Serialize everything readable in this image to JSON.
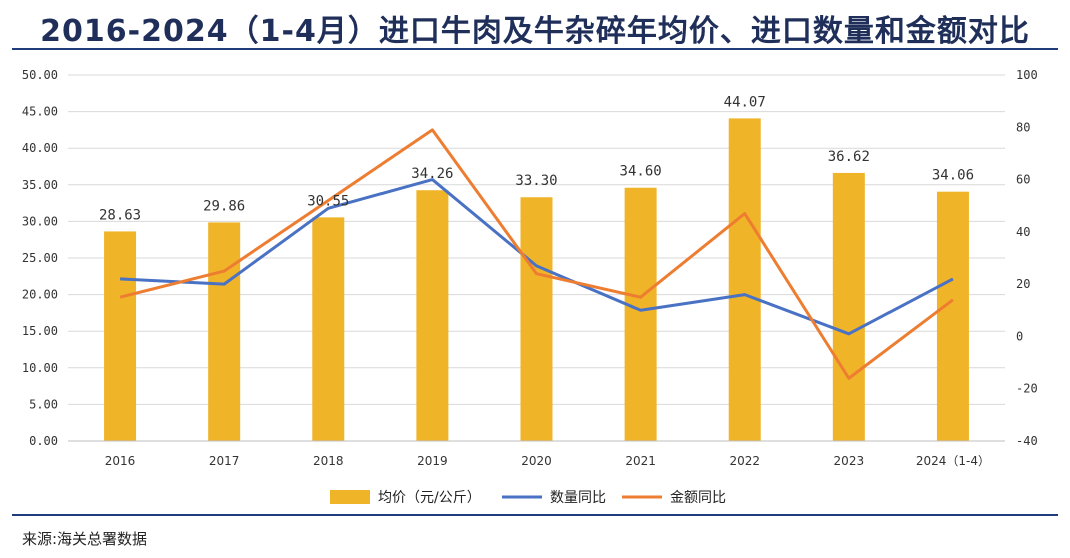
{
  "title": "2016-2024（1-4月）进口牛肉及牛杂碎年均价、进口数量和金额对比",
  "source": "来源:海关总署数据",
  "colors": {
    "bar": "#F0B429",
    "quantity": "#4A72C4",
    "amount": "#ED7D31",
    "title": "#1f2f5a"
  },
  "chart_data": {
    "type": "bar",
    "categories": [
      "2016",
      "2017",
      "2018",
      "2019",
      "2020",
      "2021",
      "2022",
      "2023",
      "2024（1-4）"
    ],
    "left_ylim": [
      0,
      50
    ],
    "left_yticks": [
      "0.00",
      "5.00",
      "10.00",
      "15.00",
      "20.00",
      "25.00",
      "30.00",
      "35.00",
      "40.00",
      "45.00",
      "50.00"
    ],
    "right_ylim": [
      -40,
      100
    ],
    "right_yticks": [
      "-40",
      "-20",
      "0",
      "20",
      "40",
      "60",
      "80",
      "100"
    ],
    "legend_position": "bottom",
    "series": [
      {
        "name": "均价（元/公斤）",
        "type": "bar",
        "axis": "left",
        "values": [
          28.63,
          29.86,
          30.55,
          34.26,
          33.3,
          34.6,
          44.07,
          36.62,
          34.06
        ],
        "labels": [
          "28.63",
          "29.86",
          "30.55",
          "34.26",
          "33.30",
          "34.60",
          "44.07",
          "36.62",
          "34.06"
        ]
      },
      {
        "name": "数量同比",
        "type": "line",
        "axis": "right",
        "values": [
          22,
          20,
          49,
          60,
          27,
          10,
          16,
          1,
          22
        ]
      },
      {
        "name": "金额同比",
        "type": "line",
        "axis": "right",
        "values": [
          15,
          25,
          52,
          79,
          24,
          15,
          47,
          -16,
          14
        ]
      }
    ]
  }
}
